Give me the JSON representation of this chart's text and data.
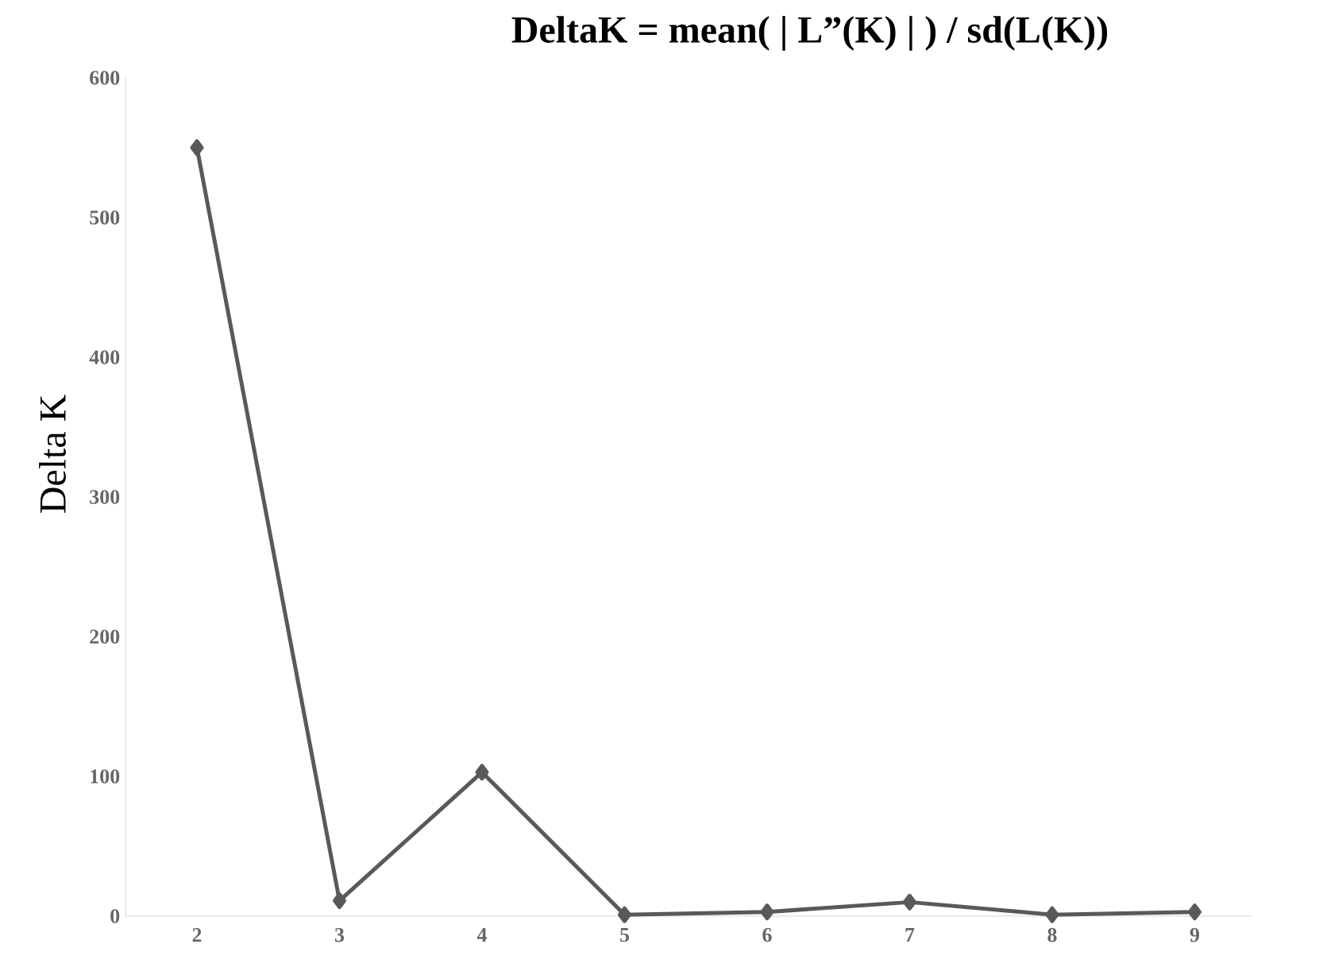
{
  "chart_data": {
    "type": "line",
    "title": "DeltaK = mean( | L”(K) | ) / sd(L(K))",
    "ylabel": "Delta K",
    "categories": [
      "2",
      "3",
      "4",
      "5",
      "6",
      "7",
      "8",
      "9"
    ],
    "series": [
      {
        "color": "#595959",
        "values": [
          550,
          11,
          103,
          1,
          3,
          10,
          1,
          3
        ]
      }
    ],
    "ylim": [
      0,
      600
    ],
    "yticks": [
      0,
      100,
      200,
      300,
      400,
      500,
      600
    ],
    "marker": "diamond",
    "line_style": "solid",
    "grid": false
  }
}
